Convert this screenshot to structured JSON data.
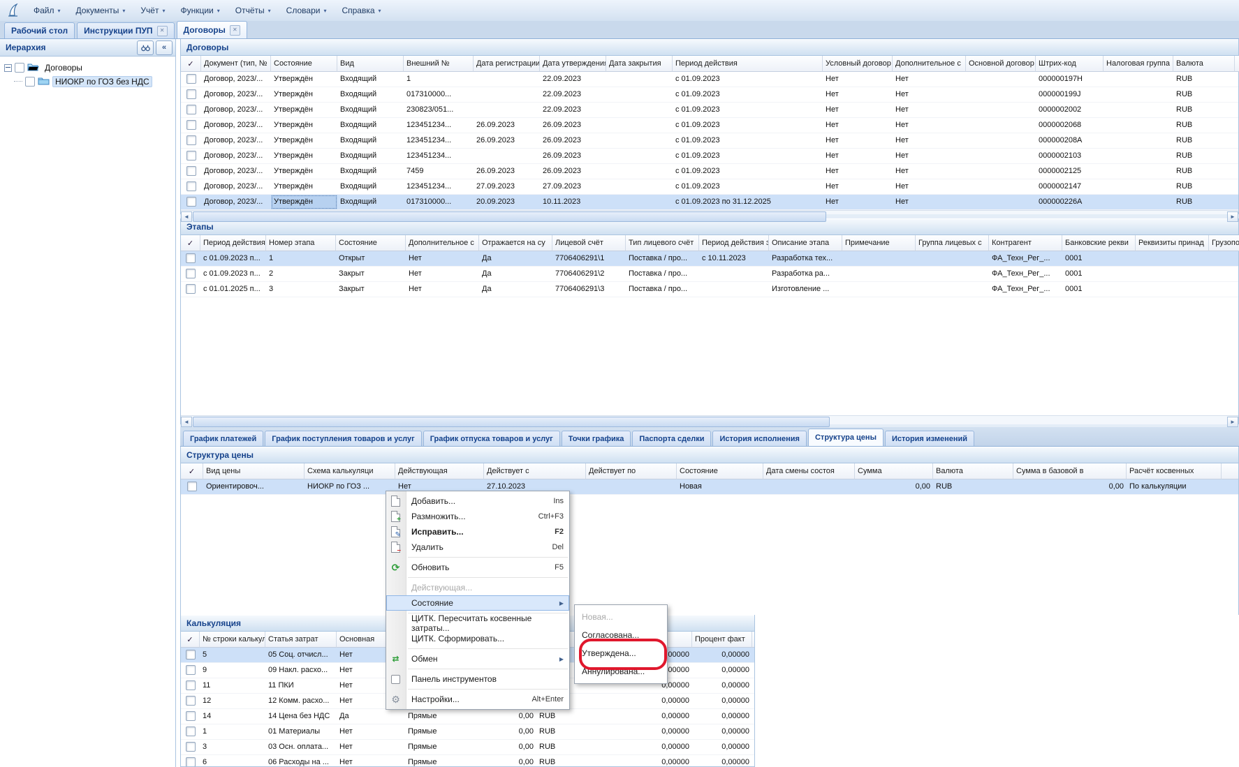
{
  "colors": {
    "accent": "#15428b",
    "selection": "#cde0f8",
    "focused_cell": "#b7d1f0",
    "annotation_red": "#e0182d",
    "menu_highlight": "#d9e8fb"
  },
  "menubar": {
    "logo_icon": "sail-icon",
    "items": [
      "Файл",
      "Документы",
      "Учёт",
      "Функции",
      "Отчёты",
      "Словари",
      "Справка"
    ]
  },
  "tabs": [
    {
      "label": "Рабочий стол",
      "closable": false,
      "active": false
    },
    {
      "label": "Инструкции ПУП",
      "closable": true,
      "active": false
    },
    {
      "label": "Договоры",
      "closable": true,
      "active": true
    }
  ],
  "hierarchy": {
    "title": "Иерархия",
    "buttons": [
      "binoculars-icon",
      "collapse-left-icon"
    ],
    "nodes": [
      {
        "label": "Договоры",
        "level": 0,
        "expanded": true,
        "selected": false
      },
      {
        "label": "НИОКР по ГОЗ без НДС",
        "level": 1,
        "expanded": false,
        "selected": true
      }
    ]
  },
  "contracts": {
    "title": "Договоры",
    "table": {
      "check_header": "✓",
      "check_width": 29,
      "headers": [
        "Документ (тип, №",
        "Состояние",
        "Вид",
        "Внешний №",
        "Дата регистрации",
        "Дата утверждения",
        "Дата закрытия",
        "Период действия",
        "Условный договор",
        "Дополнительное с",
        "Основной договор",
        "Штрих-код",
        "Налоговая группа",
        "Валюта"
      ],
      "widths": [
        100,
        95,
        95,
        100,
        95,
        95,
        95,
        215,
        100,
        105,
        100,
        97,
        100,
        88
      ],
      "right_cols": [],
      "selected_row": 8,
      "focused": {
        "row": 8,
        "col": 1
      },
      "rows": [
        [
          "Договор, 2023/...",
          "Утверждён",
          "Входящий",
          "1",
          "",
          "22.09.2023",
          "",
          "с 01.09.2023",
          "Нет",
          "Нет",
          "",
          "000000197H",
          "",
          "RUB"
        ],
        [
          "Договор, 2023/...",
          "Утверждён",
          "Входящий",
          "017310000...",
          "",
          "22.09.2023",
          "",
          "с 01.09.2023",
          "Нет",
          "Нет",
          "",
          "000000199J",
          "",
          "RUB"
        ],
        [
          "Договор, 2023/...",
          "Утверждён",
          "Входящий",
          "230823/051...",
          "",
          "22.09.2023",
          "",
          "с 01.09.2023",
          "Нет",
          "Нет",
          "",
          "0000002002",
          "",
          "RUB"
        ],
        [
          "Договор, 2023/...",
          "Утверждён",
          "Входящий",
          "123451234...",
          "26.09.2023",
          "26.09.2023",
          "",
          "с 01.09.2023",
          "Нет",
          "Нет",
          "",
          "0000002068",
          "",
          "RUB"
        ],
        [
          "Договор, 2023/...",
          "Утверждён",
          "Входящий",
          "123451234...",
          "26.09.2023",
          "26.09.2023",
          "",
          "с 01.09.2023",
          "Нет",
          "Нет",
          "",
          "000000208A",
          "",
          "RUB"
        ],
        [
          "Договор, 2023/...",
          "Утверждён",
          "Входящий",
          "123451234...",
          "",
          "26.09.2023",
          "",
          "с 01.09.2023",
          "Нет",
          "Нет",
          "",
          "0000002103",
          "",
          "RUB"
        ],
        [
          "Договор, 2023/...",
          "Утверждён",
          "Входящий",
          "7459",
          "26.09.2023",
          "26.09.2023",
          "",
          "с 01.09.2023",
          "Нет",
          "Нет",
          "",
          "0000002125",
          "",
          "RUB"
        ],
        [
          "Договор, 2023/...",
          "Утверждён",
          "Входящий",
          "123451234...",
          "27.09.2023",
          "27.09.2023",
          "",
          "с 01.09.2023",
          "Нет",
          "Нет",
          "",
          "0000002147",
          "",
          "RUB"
        ],
        [
          "Договор, 2023/...",
          "Утверждён",
          "Входящий",
          "017310000...",
          "20.09.2023",
          "10.11.2023",
          "",
          "с 01.09.2023 по 31.12.2025",
          "Нет",
          "Нет",
          "",
          "000000226A",
          "",
          "RUB"
        ]
      ]
    }
  },
  "stages": {
    "title": "Этапы",
    "table": {
      "check_header": "✓",
      "check_width": 28,
      "headers": [
        "Период действия..",
        "Номер этапа",
        "Состояние",
        "Дополнительное с",
        "Отражается на су",
        "Лицевой счёт",
        "Тип лицевого счёт",
        "Период действия э",
        "Описание этапа",
        "Примечание",
        "Группа лицевых с",
        "Контрагент",
        "Банковские рекви",
        "Реквизиты принад",
        "Грузополучатель"
      ],
      "widths": [
        94,
        100,
        100,
        105,
        105,
        105,
        105,
        100,
        105,
        105,
        105,
        105,
        105,
        105,
        100
      ],
      "right_cols": [],
      "selected_row": 0,
      "focused": null,
      "rows": [
        [
          "с 01.09.2023 п...",
          "1",
          "Открыт",
          "Нет",
          "Да",
          "7706406291\\1",
          "Поставка / про...",
          "с 10.11.2023",
          "Разработка тех...",
          "",
          "",
          "ФА_Техн_Рег_...",
          "0001",
          "",
          ""
        ],
        [
          "с 01.09.2023 п...",
          "2",
          "Закрыт",
          "Нет",
          "Да",
          "7706406291\\2",
          "Поставка / про...",
          "",
          "Разработка ра...",
          "",
          "",
          "ФА_Техн_Рег_...",
          "0001",
          "",
          ""
        ],
        [
          "с 01.01.2025 п...",
          "3",
          "Закрыт",
          "Нет",
          "Да",
          "7706406291\\3",
          "Поставка / про...",
          "",
          "Изготовление ...",
          "",
          "",
          "ФА_Техн_Рег_...",
          "0001",
          "",
          ""
        ]
      ]
    }
  },
  "subtabs": {
    "active_index": 6,
    "items": [
      "График платежей",
      "График поступления товаров и услуг",
      "График отпуска товаров и услуг",
      "Точки графика",
      "Паспорта сделки",
      "История исполнения",
      "Структура цены",
      "История изменений"
    ]
  },
  "price_structure": {
    "title": "Структура цены",
    "table": {
      "check_header": "✓",
      "check_width": 32,
      "headers": [
        "Вид цены",
        "Схема калькуляци",
        "Действующая",
        "Действует с",
        "Действует по",
        "Состояние",
        "Дата смены состоя",
        "Сумма",
        "Валюта",
        "Сумма в базовой в",
        "Расчёт косвенных"
      ],
      "widths": [
        145,
        130,
        127,
        146,
        130,
        124,
        131,
        112,
        115,
        162,
        136
      ],
      "right_cols": [
        7,
        9
      ],
      "selected_row": 0,
      "focused": null,
      "rows": [
        [
          "Ориентировоч...",
          "НИОКР по ГОЗ ...",
          "Нет",
          "27.10.2023",
          "",
          "Новая",
          "",
          "0,00",
          "RUB",
          "0,00",
          "По калькуляции"
        ]
      ]
    }
  },
  "calculation": {
    "title": "Калькуляция",
    "table": {
      "check_header": "✓",
      "check_width": 27,
      "headers": [
        "№ строки калькул",
        "Статья затрат",
        "Основная",
        "",
        "",
        "",
        "Процент план",
        "Процент факт"
      ],
      "widths": [
        94,
        102,
        98,
        108,
        80,
        84,
        139,
        86
      ],
      "right_cols": [
        4,
        6,
        7
      ],
      "selected_row": 0,
      "focused": null,
      "rows": [
        [
          "5",
          "05 Соц. отчисл...",
          "Нет",
          "Прямые",
          "0,00",
          "RUB",
          "0,00000",
          "0,00000"
        ],
        [
          "9",
          "09 Накл. расхо...",
          "Нет",
          "Прямые",
          "0,00",
          "RUB",
          "0,00000",
          "0,00000"
        ],
        [
          "11",
          "11 ПКИ",
          "Нет",
          "Прямые",
          "0,00",
          "RUB",
          "0,00000",
          "0,00000"
        ],
        [
          "12",
          "12 Комм. расхо...",
          "Нет",
          "Прямые",
          "0,00",
          "RUB",
          "0,00000",
          "0,00000"
        ],
        [
          "14",
          "14 Цена без НДС",
          "Да",
          "Прямые",
          "0,00",
          "RUB",
          "0,00000",
          "0,00000"
        ],
        [
          "1",
          "01 Материалы",
          "Нет",
          "Прямые",
          "0,00",
          "RUB",
          "0,00000",
          "0,00000"
        ],
        [
          "3",
          "03 Осн. оплата...",
          "Нет",
          "Прямые",
          "0,00",
          "RUB",
          "0,00000",
          "0,00000"
        ],
        [
          "6",
          "06 Расходы на ...",
          "Нет",
          "Прямые",
          "0,00",
          "RUB",
          "0,00000",
          "0,00000"
        ],
        [
          "",
          "",
          "",
          "",
          "",
          "",
          "",
          ""
        ]
      ]
    }
  },
  "context_menu": {
    "items": [
      {
        "label": "Добавить...",
        "shortcut": "Ins",
        "icon": "page-icon"
      },
      {
        "label": "Размножить...",
        "shortcut": "Ctrl+F3",
        "icon": "page-plus-icon"
      },
      {
        "label": "Исправить...",
        "shortcut": "F2",
        "icon": "page-edit-icon",
        "bold": true
      },
      {
        "label": "Удалить",
        "shortcut": "Del",
        "icon": "page-minus-icon"
      },
      {
        "sep": true
      },
      {
        "label": "Обновить",
        "shortcut": "F5",
        "icon": "refresh-icon"
      },
      {
        "sep": true
      },
      {
        "label": "Действующая...",
        "disabled": true
      },
      {
        "label": "Состояние",
        "submenu": true,
        "highlighted": true
      },
      {
        "sep": true
      },
      {
        "label": "ЦИТК. Пересчитать косвенные затраты..."
      },
      {
        "label": "ЦИТК. Сформировать..."
      },
      {
        "sep": true
      },
      {
        "label": "Обмен",
        "submenu": true,
        "icon": "exchange-icon"
      },
      {
        "sep": true
      },
      {
        "label": "Панель инструментов",
        "icon": "checkbox-icon"
      },
      {
        "sep": true
      },
      {
        "label": "Настройки...",
        "shortcut": "Alt+Enter",
        "icon": "wrench-icon"
      }
    ]
  },
  "submenu": {
    "items": [
      {
        "label": "Новая...",
        "disabled": true
      },
      {
        "label": "Согласована..."
      },
      {
        "label": "Утверждена...",
        "annotated": true
      },
      {
        "label": "Аннулирована..."
      }
    ]
  },
  "scrollbars": {
    "contracts_thumb": 905,
    "stages_thumb": 910
  }
}
